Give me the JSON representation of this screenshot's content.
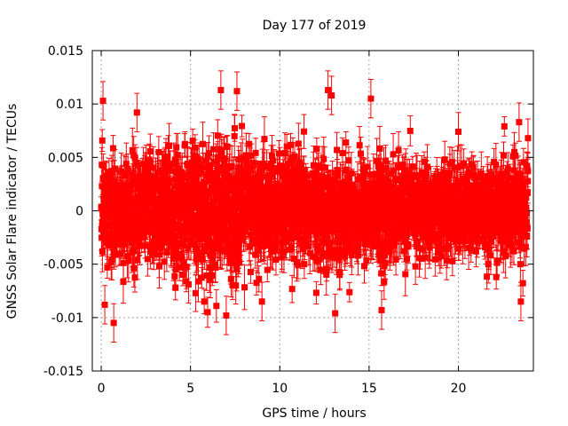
{
  "chart_data": {
    "type": "scatter",
    "title": "Day 177 of 2019",
    "xlabel": "GPS time / hours",
    "ylabel": "GNSS Solar Flare indicator / TECUs",
    "xlim": [
      -0.5,
      24.2
    ],
    "ylim": [
      -0.015,
      0.015
    ],
    "xticks": [
      0,
      5,
      10,
      15,
      20
    ],
    "yticks": [
      -0.015,
      -0.01,
      -0.005,
      0,
      0.005,
      0.01,
      0.015
    ],
    "xtick_labels": [
      "0",
      "5",
      "10",
      "15",
      "20"
    ],
    "ytick_labels": [
      "-0.015",
      "-0.01",
      "-0.005",
      "0",
      "0.005",
      "0.01",
      "0.015"
    ],
    "grid": true,
    "series": [
      {
        "name": "GNSS Solar Flare indicator",
        "color": "#ff0000",
        "marker": "square",
        "error_bars": true,
        "x_start": 0.0,
        "x_end": 23.9,
        "x_step": 0.0083,
        "typical_spread": 0.003,
        "typical_error": 0.0015,
        "outliers": [
          {
            "x": 0.1,
            "y": 0.0103
          },
          {
            "x": 0.2,
            "y": -0.0088
          },
          {
            "x": 0.7,
            "y": -0.0105
          },
          {
            "x": 2.0,
            "y": 0.0092
          },
          {
            "x": 6.7,
            "y": 0.0113
          },
          {
            "x": 7.6,
            "y": 0.0112
          },
          {
            "x": 7.0,
            "y": -0.0098
          },
          {
            "x": 9.0,
            "y": -0.0085
          },
          {
            "x": 12.7,
            "y": 0.0113
          },
          {
            "x": 12.9,
            "y": 0.0108
          },
          {
            "x": 13.1,
            "y": -0.0096
          },
          {
            "x": 15.1,
            "y": 0.0105
          },
          {
            "x": 15.7,
            "y": -0.0093
          },
          {
            "x": 20.0,
            "y": 0.0074
          },
          {
            "x": 23.4,
            "y": 0.0083
          },
          {
            "x": 23.5,
            "y": -0.0085
          },
          {
            "x": 23.9,
            "y": 0.0068
          }
        ]
      }
    ]
  }
}
